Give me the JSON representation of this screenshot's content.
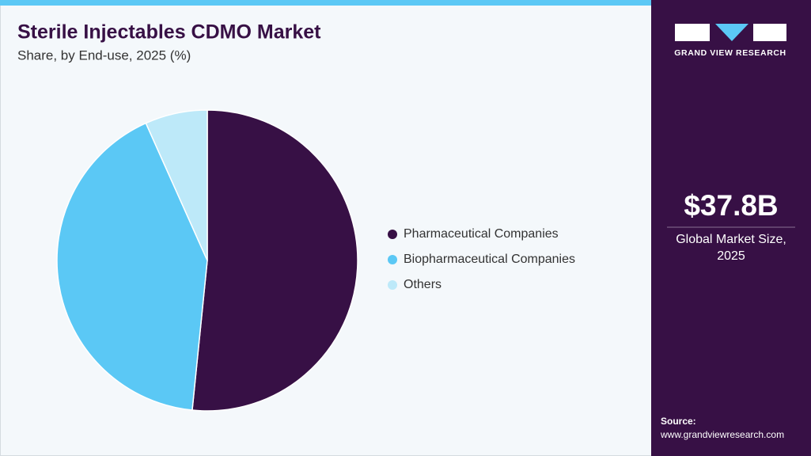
{
  "chart_data": {
    "type": "pie",
    "title": "Sterile Injectables CDMO Market",
    "subtitle": "Share, by End-use, 2025 (%)",
    "categories": [
      "Pharmaceutical Companies",
      "Biopharmaceutical Companies",
      "Others"
    ],
    "values": [
      51.6,
      41.7,
      6.7
    ],
    "colors": [
      "#371045",
      "#5bc8f5",
      "#bde9f9"
    ],
    "legend": "right"
  },
  "sidebar": {
    "brand": "GRAND VIEW RESEARCH",
    "market_size": "$37.8B",
    "market_label": "Global Market Size, 2025",
    "source_label": "Source:",
    "source_url": "www.grandviewresearch.com"
  }
}
